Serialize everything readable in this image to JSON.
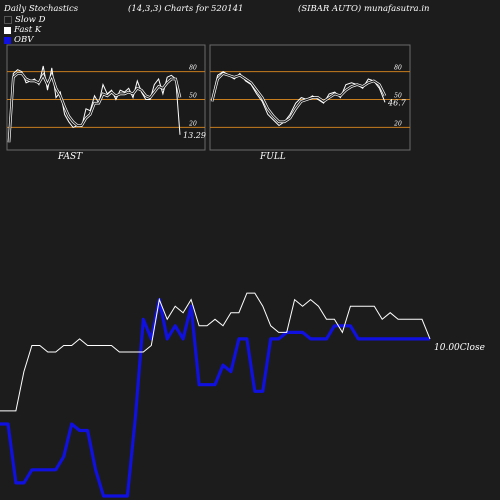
{
  "header": {
    "left": "Daily Stochastics",
    "params": "(14,3,3) Charts for 520141",
    "right": "(SIBAR AUTO) munafasutra.in"
  },
  "legend": [
    {
      "label": "Slow  D",
      "color": "#1c1c1c"
    },
    {
      "label": "Fast K",
      "color": "#ffffff"
    },
    {
      "label": "OBV",
      "color": "#1010e0"
    }
  ],
  "colors": {
    "background": "#1c1c1c",
    "panel": "#1a1a1a",
    "level_line": "#c77d1e",
    "white_line": "#ffffff",
    "obv_line": "#1010e0"
  },
  "chart_data": [
    {
      "type": "line",
      "title": "FAST",
      "ylim": [
        0,
        100
      ],
      "y_ticks": [
        "80",
        "50",
        "20"
      ],
      "levels": [
        80,
        50,
        20
      ],
      "last_value_label": "13.29",
      "series": [
        {
          "name": "Fast K",
          "values": [
            4,
            78,
            82,
            80,
            68,
            70,
            72,
            66,
            86,
            60,
            84,
            52,
            58,
            34,
            26,
            20,
            22,
            21,
            40,
            38,
            54,
            46,
            66,
            56,
            60,
            50,
            60,
            58,
            62,
            52,
            70,
            58,
            50,
            50,
            66,
            72,
            56,
            74,
            76,
            72,
            12
          ]
        },
        {
          "name": "Slow  D",
          "values": [
            4,
            74,
            78,
            78,
            72,
            70,
            70,
            68,
            76,
            66,
            76,
            62,
            54,
            42,
            32,
            26,
            22,
            22,
            30,
            34,
            46,
            46,
            56,
            54,
            58,
            54,
            56,
            56,
            58,
            56,
            62,
            60,
            54,
            52,
            58,
            64,
            62,
            68,
            72,
            72,
            52
          ]
        }
      ]
    },
    {
      "type": "line",
      "title": "FULL",
      "ylim": [
        0,
        100
      ],
      "y_ticks": [
        "80",
        "50",
        "20"
      ],
      "levels": [
        80,
        50,
        20
      ],
      "last_value_label": "46.7",
      "series": [
        {
          "name": "Fast K",
          "values": [
            50,
            76,
            80,
            76,
            72,
            78,
            70,
            66,
            56,
            48,
            34,
            28,
            22,
            26,
            34,
            46,
            52,
            50,
            54,
            50,
            46,
            56,
            58,
            52,
            66,
            68,
            66,
            62,
            72,
            70,
            62,
            47
          ]
        },
        {
          "name": "Slow  D",
          "values": [
            48,
            72,
            78,
            76,
            74,
            76,
            72,
            68,
            60,
            52,
            40,
            32,
            26,
            26,
            30,
            40,
            48,
            50,
            52,
            52,
            48,
            52,
            56,
            54,
            60,
            64,
            66,
            64,
            68,
            70,
            66,
            54
          ]
        }
      ]
    },
    {
      "type": "line",
      "y_label": "10.00Close",
      "series": [
        {
          "name": "Close",
          "values": [
            9.0,
            9.0,
            9.0,
            9.6,
            10.0,
            10.0,
            9.9,
            9.9,
            10.0,
            10.0,
            10.1,
            10.0,
            10.0,
            10.0,
            10.0,
            9.9,
            9.9,
            9.9,
            9.9,
            10.0,
            10.7,
            10.4,
            10.6,
            10.5,
            10.7,
            10.3,
            10.3,
            10.4,
            10.3,
            10.5,
            10.5,
            10.8,
            10.8,
            10.6,
            10.3,
            10.2,
            10.2,
            10.7,
            10.6,
            10.7,
            10.6,
            10.4,
            10.4,
            10.2,
            10.6,
            10.6,
            10.6,
            10.6,
            10.4,
            10.5,
            10.4,
            10.4,
            10.4,
            10.4,
            10.1
          ]
        },
        {
          "name": "OBV",
          "values": [
            8.8,
            8.8,
            7.9,
            7.9,
            8.1,
            8.1,
            8.1,
            8.1,
            8.3,
            8.8,
            8.7,
            8.7,
            8.1,
            7.7,
            7.7,
            7.7,
            7.7,
            8.9,
            10.4,
            10.1,
            10.7,
            10.1,
            10.3,
            10.1,
            10.6,
            9.4,
            9.4,
            9.4,
            9.7,
            9.6,
            10.1,
            10.1,
            9.3,
            9.3,
            10.1,
            10.1,
            10.2,
            10.2,
            10.2,
            10.1,
            10.1,
            10.1,
            10.3,
            10.3,
            10.3,
            10.1,
            10.1,
            10.1,
            10.1,
            10.1,
            10.1,
            10.1,
            10.1,
            10.1,
            10.1
          ]
        }
      ]
    }
  ]
}
